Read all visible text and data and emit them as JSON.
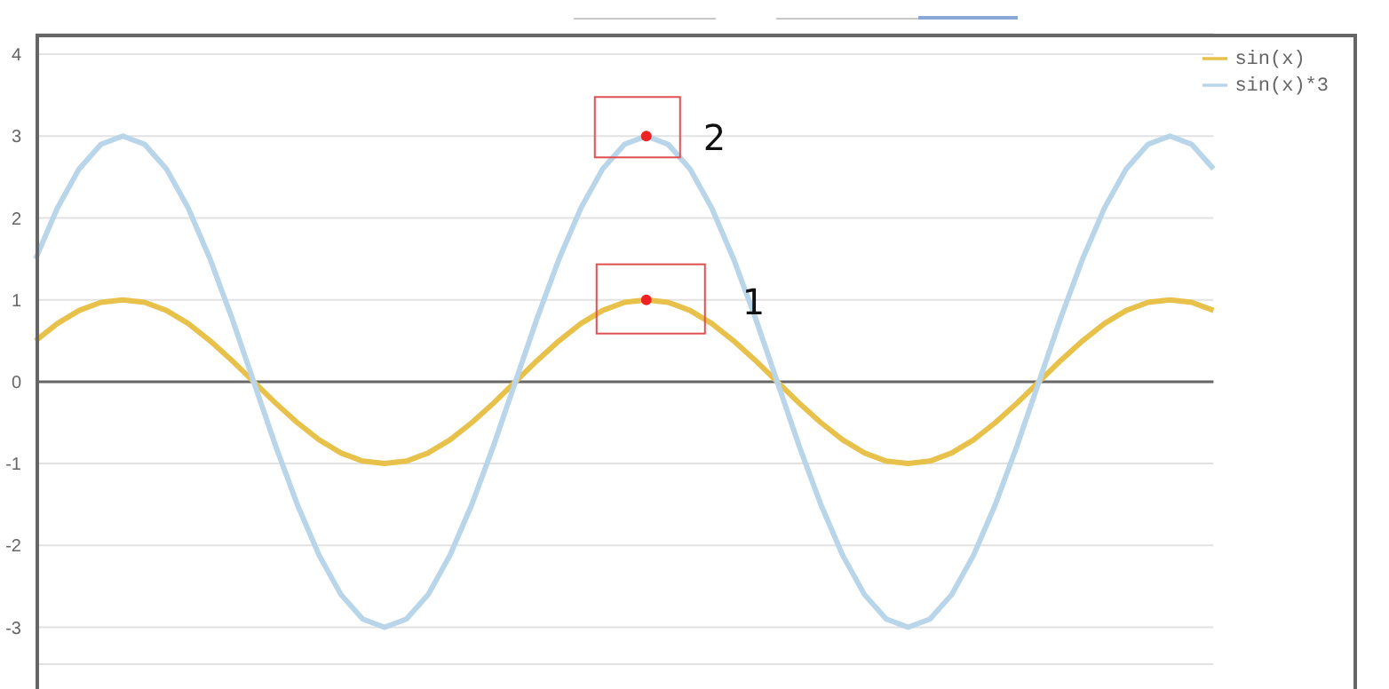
{
  "chart_data": {
    "type": "line",
    "categories": [
      null,
      null,
      null,
      null,
      null,
      null,
      null,
      null,
      null,
      null,
      null,
      null,
      null,
      null,
      null,
      null,
      null,
      null,
      null,
      null,
      null,
      null,
      null,
      null,
      null,
      null,
      null,
      null,
      null,
      null,
      null,
      null,
      null,
      null,
      null,
      null,
      null,
      null,
      null,
      null,
      null,
      null,
      null,
      null,
      null,
      null,
      null,
      null,
      null,
      null,
      null,
      null,
      null,
      null,
      null
    ],
    "series": [
      {
        "name": "sin(x)",
        "color": "#e8c14a",
        "values": [
          0.5,
          0.71,
          0.87,
          0.97,
          1,
          0.97,
          0.87,
          0.71,
          0.5,
          0.26,
          0,
          -0.26,
          -0.5,
          -0.71,
          -0.87,
          -0.97,
          -1,
          -0.97,
          -0.87,
          -0.71,
          -0.5,
          -0.26,
          0,
          0.26,
          0.5,
          0.71,
          0.87,
          0.97,
          1,
          0.97,
          0.87,
          0.71,
          0.5,
          0.26,
          0,
          -0.26,
          -0.5,
          -0.71,
          -0.87,
          -0.97,
          -1,
          -0.97,
          -0.87,
          -0.71,
          -0.5,
          -0.26,
          0,
          0.26,
          0.5,
          0.71,
          0.87,
          0.97,
          1,
          0.97,
          0.87
        ]
      },
      {
        "name": "sin(x)*3",
        "color": "#b9d5ea",
        "values": [
          1.5,
          2.12,
          2.6,
          2.9,
          3,
          2.9,
          2.6,
          2.12,
          1.5,
          0.78,
          0,
          -0.78,
          -1.5,
          -2.12,
          -2.6,
          -2.9,
          -3,
          -2.9,
          -2.6,
          -2.12,
          -1.5,
          -0.78,
          0,
          0.78,
          1.5,
          2.12,
          2.6,
          2.9,
          3,
          2.9,
          2.6,
          2.12,
          1.5,
          0.78,
          0,
          -0.78,
          -1.5,
          -2.12,
          -2.6,
          -2.9,
          -3,
          -2.9,
          -2.6,
          -2.12,
          -1.5,
          -0.78,
          0,
          0.78,
          1.5,
          2.12,
          2.6,
          2.9,
          3,
          2.9,
          2.6
        ]
      }
    ],
    "ylim": [
      -3.45,
      4.25
    ],
    "yticks": [
      -3,
      -2,
      -1,
      0,
      1,
      2,
      3,
      4
    ],
    "tick_labels": "y",
    "grid": "y",
    "legend": "top right",
    "marker": "none",
    "line_style": "solid",
    "ref_lines": [
      {
        "axis": "y",
        "value": 0,
        "color": "#666666"
      }
    ],
    "annotations": [
      "1",
      "2"
    ]
  }
}
